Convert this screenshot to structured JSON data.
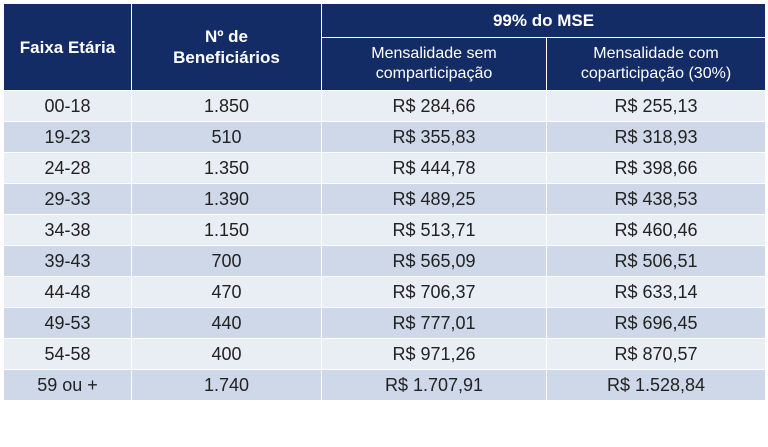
{
  "table": {
    "headers": {
      "age_range": "Faixa Etária",
      "beneficiaries_line1": "Nº de",
      "beneficiaries_line2": "Beneficiários",
      "group": "99% do MSE",
      "no_copay_line1": "Mensalidade sem",
      "no_copay_line2": "comparticipação",
      "copay_line1": "Mensalidade com",
      "copay_line2": "coparticipação (30%)"
    },
    "rows": [
      {
        "age": "00-18",
        "count": "1.850",
        "no_copay": "R$ 284,66",
        "copay": "R$ 255,13"
      },
      {
        "age": "19-23",
        "count": "510",
        "no_copay": "R$ 355,83",
        "copay": "R$ 318,93"
      },
      {
        "age": "24-28",
        "count": "1.350",
        "no_copay": "R$ 444,78",
        "copay": "R$ 398,66"
      },
      {
        "age": "29-33",
        "count": "1.390",
        "no_copay": "R$ 489,25",
        "copay": "R$ 438,53"
      },
      {
        "age": "34-38",
        "count": "1.150",
        "no_copay": "R$ 513,71",
        "copay": "R$ 460,46"
      },
      {
        "age": "39-43",
        "count": "700",
        "no_copay": "R$ 565,09",
        "copay": "R$ 506,51"
      },
      {
        "age": "44-48",
        "count": "470",
        "no_copay": "R$ 706,37",
        "copay": "R$ 633,14"
      },
      {
        "age": "49-53",
        "count": "440",
        "no_copay": "R$ 777,01",
        "copay": "R$ 696,45"
      },
      {
        "age": "54-58",
        "count": "400",
        "no_copay": "R$ 971,26",
        "copay": "R$ 870,57"
      },
      {
        "age": "59 ou +",
        "count": "1.740",
        "no_copay": "R$ 1.707,91",
        "copay": "R$ 1.528,84"
      }
    ]
  },
  "colors": {
    "header_bg": "#132c66",
    "row_light": "#e9edf4",
    "row_dark": "#cfd8e8"
  }
}
